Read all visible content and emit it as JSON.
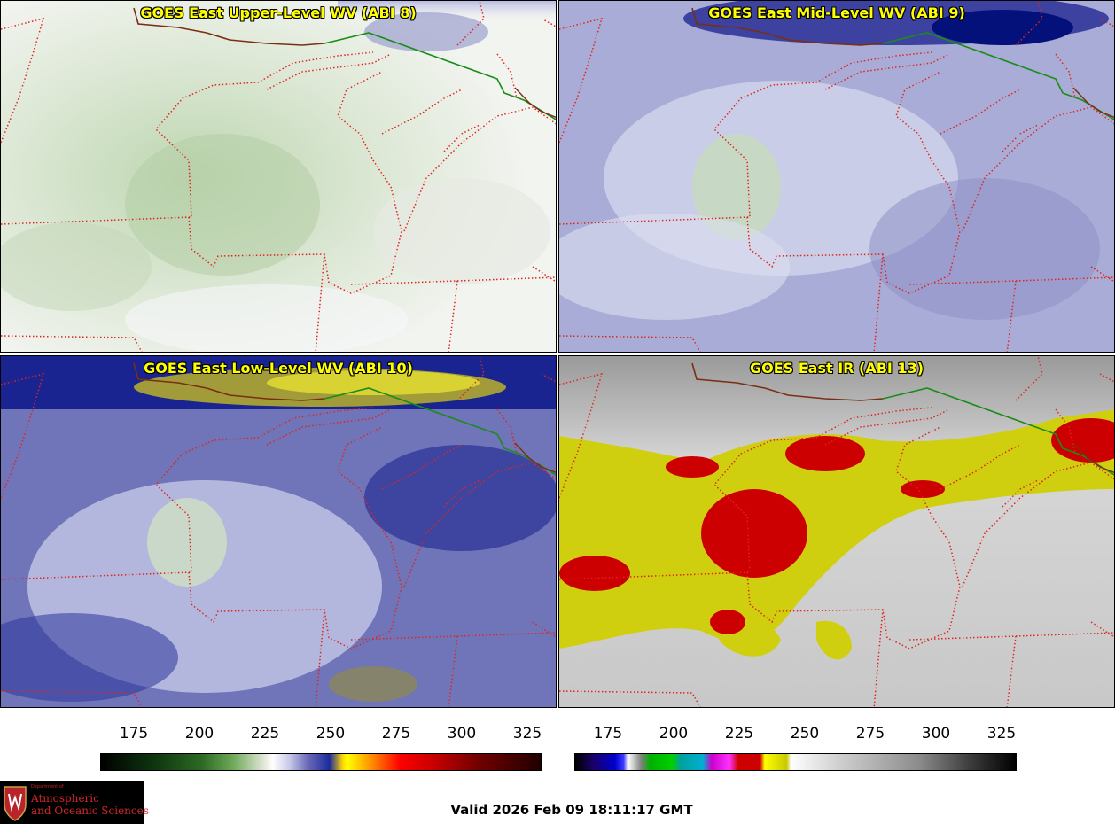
{
  "panels": {
    "upper_wv": {
      "title": "GOES East Upper-Level WV (ABI 8)"
    },
    "mid_wv": {
      "title": "GOES East Mid-Level WV (ABI 9)"
    },
    "low_wv": {
      "title": "GOES East Low-Level WV (ABI 10)"
    },
    "ir": {
      "title": "GOES East IR (ABI 13)"
    }
  },
  "colorbars": {
    "left": {
      "ticks": [
        "175",
        "200",
        "225",
        "250",
        "275",
        "300",
        "325"
      ]
    },
    "right": {
      "ticks": [
        "175",
        "200",
        "225",
        "250",
        "275",
        "300",
        "325"
      ]
    }
  },
  "logo": {
    "department": "Department of",
    "line1": "Atmospheric",
    "line2": "and Oceanic Sciences",
    "seal_icon": "uw-crest-icon"
  },
  "valid_time": "Valid 2026 Feb 09 18:11:17 GMT",
  "colors": {
    "title_text": "#ffff00",
    "state_borders": "#e0251e",
    "canada_border": "#1a8c1a",
    "coastline": "#7a2e12"
  }
}
